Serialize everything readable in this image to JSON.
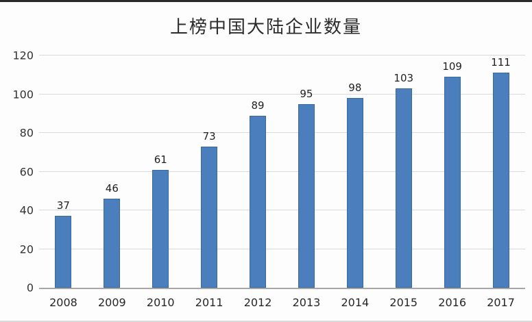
{
  "chart_data": {
    "type": "bar",
    "title": "上榜中国大陆企业数量",
    "categories": [
      "2008",
      "2009",
      "2010",
      "2011",
      "2012",
      "2013",
      "2014",
      "2015",
      "2016",
      "2017"
    ],
    "values": [
      37,
      46,
      61,
      73,
      89,
      95,
      98,
      103,
      109,
      111
    ],
    "xlabel": "",
    "ylabel": "",
    "ylim": [
      0,
      120
    ],
    "yticks": [
      0,
      20,
      40,
      60,
      80,
      100,
      120
    ],
    "grid": true,
    "legend": "none",
    "data_labels": "above-bars",
    "colors": {
      "bar_fill": "#4a7ebc",
      "bar_border": "#3a689c",
      "gridline": "#d9d9d9",
      "axis_line": "#a6a6a6",
      "title_text": "#2b2b2b",
      "tick_text": "#333333",
      "value_label_text": "#1f1f1f",
      "background": "#fdfdfd"
    }
  }
}
